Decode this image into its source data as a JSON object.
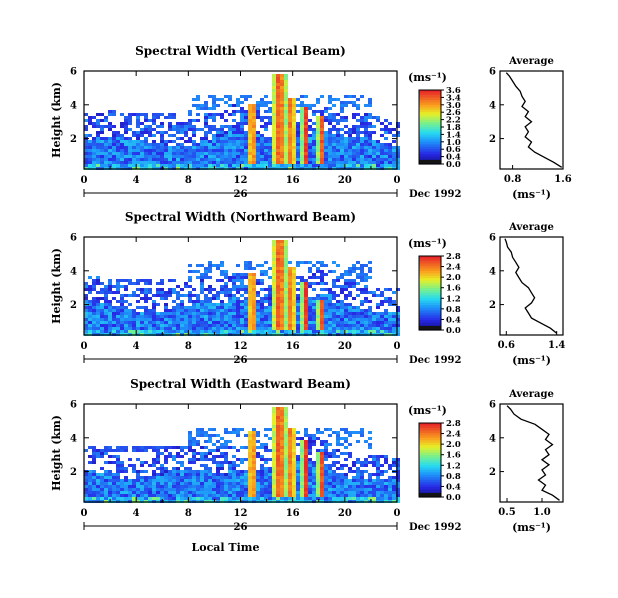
{
  "chart_data": [
    {
      "type": "heatmap",
      "title": "Spectral Width (Vertical Beam)",
      "ylabel": "Height (km)",
      "x_ticks": [
        "0",
        "4",
        "8",
        "12",
        "16",
        "20",
        "0"
      ],
      "xlim": [
        0,
        24
      ],
      "y_ticks": [
        "2",
        "4",
        "6"
      ],
      "ylim": [
        0.2,
        6.0
      ],
      "date_day": "26",
      "date_label": "Dec 1992",
      "colorbar_unit": "(ms⁻¹)",
      "colorbar_ticks": [
        "3.6",
        "3.4",
        "3.0",
        "2.6",
        "2.2",
        "1.8",
        "1.4",
        "1.0",
        "0.6",
        "0.4",
        "0.0"
      ],
      "profile": {
        "title": "Average",
        "xlabel": "(ms⁻¹)",
        "x_ticks": [
          "0.8",
          "1.6"
        ],
        "xlim": [
          0.6,
          1.6
        ],
        "y_ticks": [
          "2",
          "4",
          "6"
        ],
        "points": [
          [
            1.58,
            0.3
          ],
          [
            1.45,
            0.6
          ],
          [
            1.3,
            0.9
          ],
          [
            1.15,
            1.2
          ],
          [
            1.05,
            1.5
          ],
          [
            1.1,
            1.8
          ],
          [
            1.0,
            2.1
          ],
          [
            1.05,
            2.4
          ],
          [
            1.0,
            2.7
          ],
          [
            1.1,
            3.0
          ],
          [
            1.0,
            3.3
          ],
          [
            1.05,
            3.6
          ],
          [
            0.95,
            3.9
          ],
          [
            1.0,
            4.2
          ],
          [
            0.95,
            4.5
          ],
          [
            0.92,
            4.8
          ],
          [
            0.85,
            5.1
          ],
          [
            0.8,
            5.4
          ],
          [
            0.75,
            5.7
          ],
          [
            0.7,
            5.9
          ]
        ]
      }
    },
    {
      "type": "heatmap",
      "title": "Spectral Width (Northward Beam)",
      "ylabel": "Height (km)",
      "x_ticks": [
        "0",
        "4",
        "8",
        "12",
        "16",
        "20",
        "0"
      ],
      "xlim": [
        0,
        24
      ],
      "y_ticks": [
        "2",
        "4",
        "6"
      ],
      "ylim": [
        0.2,
        6.0
      ],
      "date_day": "26",
      "date_label": "Dec 1992",
      "colorbar_unit": "(ms⁻¹)",
      "colorbar_ticks": [
        "2.8",
        "2.4",
        "2.0",
        "1.6",
        "1.2",
        "0.8",
        "0.4",
        "0.0"
      ],
      "profile": {
        "title": "Average",
        "xlabel": "(ms⁻¹)",
        "x_ticks": [
          "0.6",
          "1.4"
        ],
        "xlim": [
          0.5,
          1.5
        ],
        "y_ticks": [
          "2",
          "4",
          "6"
        ],
        "points": [
          [
            1.4,
            0.3
          ],
          [
            1.3,
            0.6
          ],
          [
            1.15,
            0.9
          ],
          [
            1.0,
            1.2
          ],
          [
            0.95,
            1.5
          ],
          [
            0.9,
            1.8
          ],
          [
            1.0,
            2.1
          ],
          [
            1.05,
            2.4
          ],
          [
            1.0,
            2.7
          ],
          [
            0.95,
            3.0
          ],
          [
            0.85,
            3.3
          ],
          [
            0.8,
            3.6
          ],
          [
            0.75,
            3.9
          ],
          [
            0.8,
            4.2
          ],
          [
            0.75,
            4.5
          ],
          [
            0.7,
            4.8
          ],
          [
            0.68,
            5.1
          ],
          [
            0.62,
            5.4
          ],
          [
            0.6,
            5.7
          ],
          [
            0.58,
            5.9
          ]
        ]
      }
    },
    {
      "type": "heatmap",
      "title": "Spectral Width (Eastward Beam)",
      "ylabel": "Height (km)",
      "x_ticks": [
        "0",
        "4",
        "8",
        "12",
        "16",
        "20",
        "0"
      ],
      "xlim": [
        0,
        24
      ],
      "y_ticks": [
        "2",
        "4",
        "6"
      ],
      "ylim": [
        0.2,
        6.0
      ],
      "date_day": "26",
      "date_label": "Dec 1992",
      "xlabel": "Local Time",
      "colorbar_unit": "(ms⁻¹)",
      "colorbar_ticks": [
        "2.8",
        "2.4",
        "2.0",
        "1.6",
        "1.2",
        "0.8",
        "0.4",
        "0.0"
      ],
      "profile": {
        "title": "Average",
        "xlabel": "(ms⁻¹)",
        "x_ticks": [
          "0.5",
          "1.0"
        ],
        "xlim": [
          0.4,
          1.3
        ],
        "y_ticks": [
          "2",
          "4",
          "6"
        ],
        "points": [
          [
            1.25,
            0.3
          ],
          [
            1.15,
            0.6
          ],
          [
            1.0,
            0.9
          ],
          [
            1.05,
            1.2
          ],
          [
            0.95,
            1.5
          ],
          [
            1.05,
            1.8
          ],
          [
            1.0,
            2.1
          ],
          [
            1.1,
            2.4
          ],
          [
            1.0,
            2.7
          ],
          [
            1.1,
            3.0
          ],
          [
            1.05,
            3.3
          ],
          [
            1.15,
            3.6
          ],
          [
            1.05,
            3.9
          ],
          [
            1.1,
            4.2
          ],
          [
            1.0,
            4.5
          ],
          [
            0.9,
            4.8
          ],
          [
            0.7,
            5.1
          ],
          [
            0.6,
            5.4
          ],
          [
            0.55,
            5.7
          ],
          [
            0.5,
            5.9
          ]
        ]
      }
    }
  ]
}
